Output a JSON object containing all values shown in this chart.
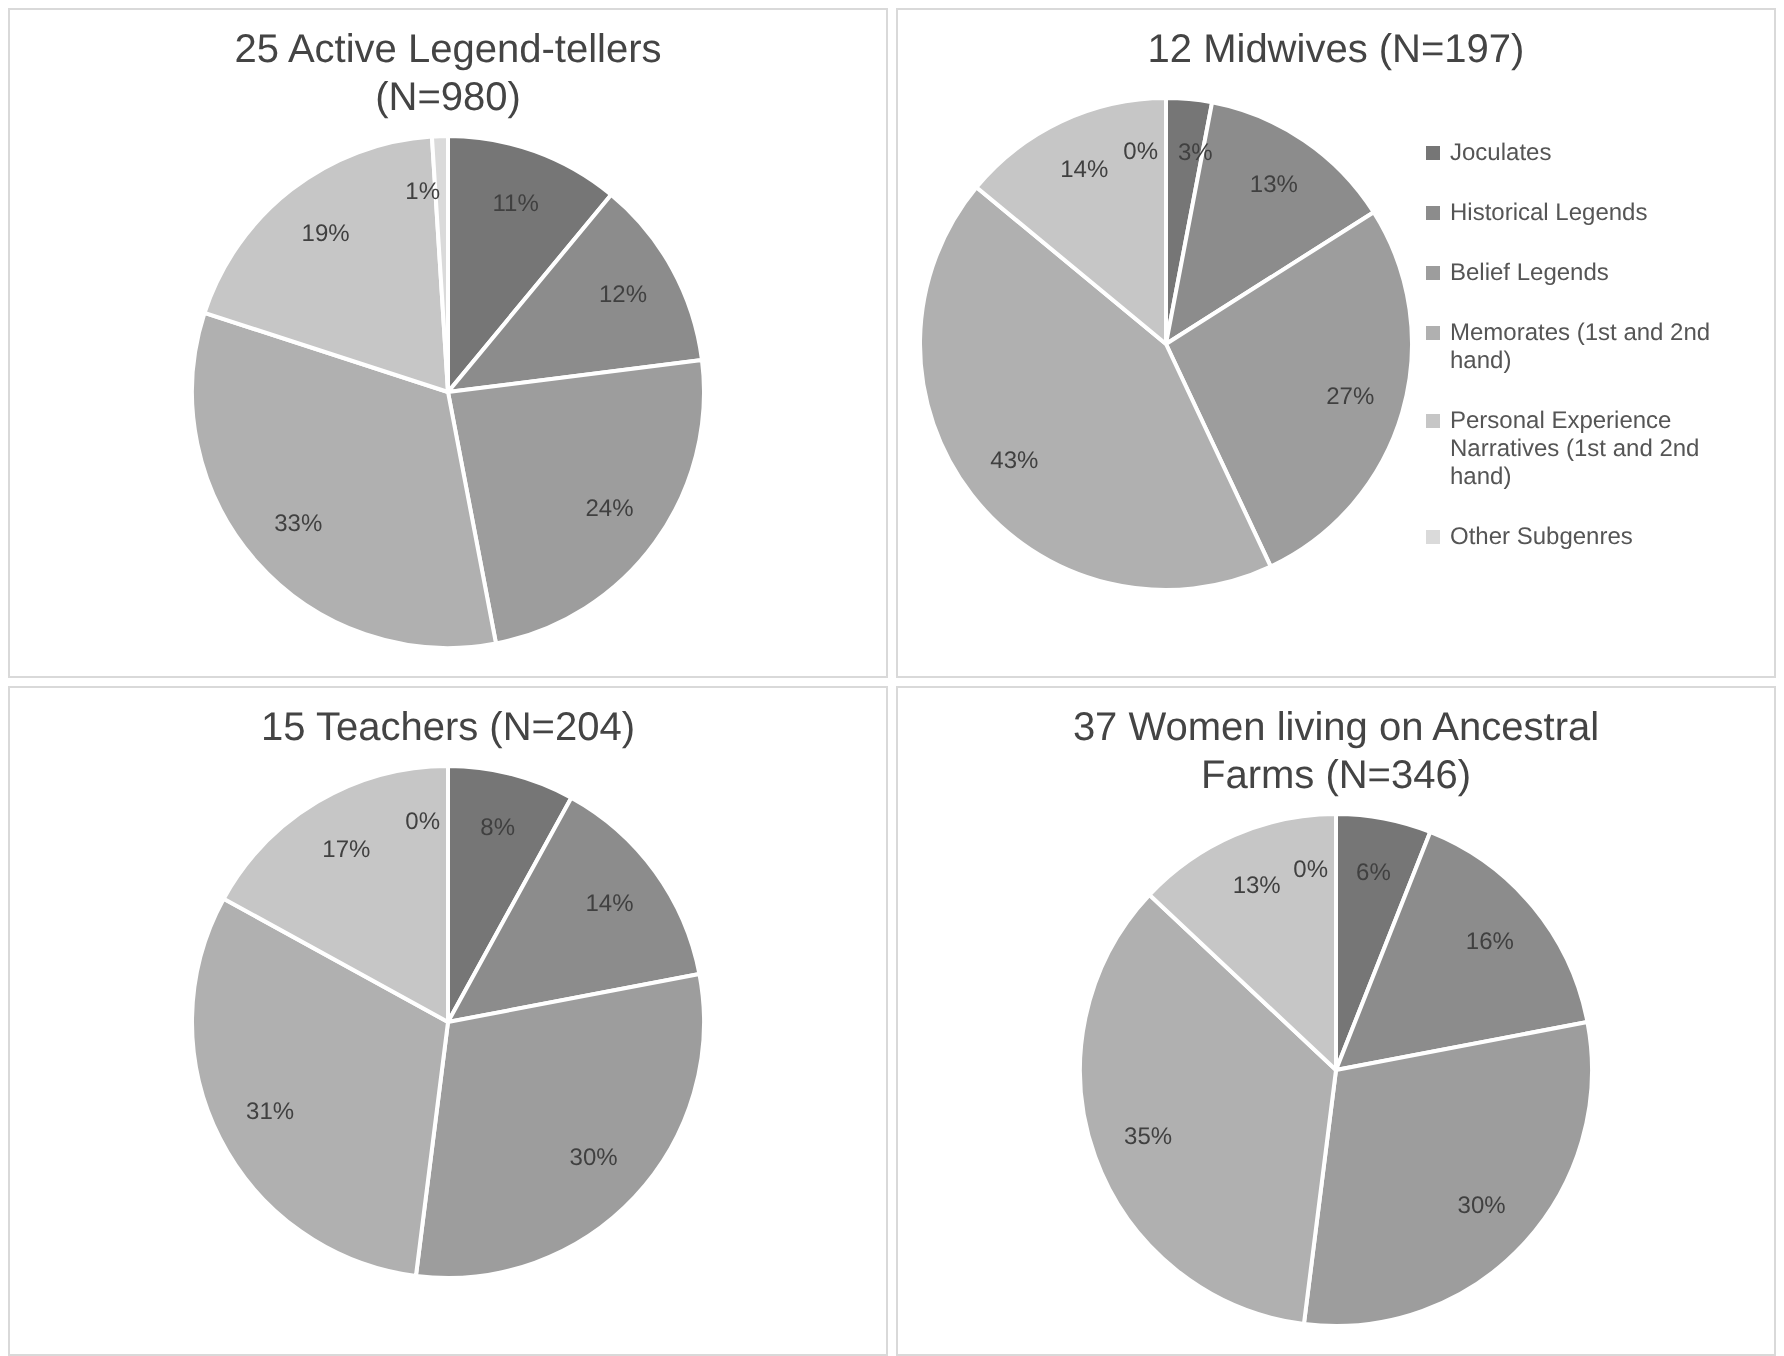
{
  "chart_data": [
    {
      "type": "pie",
      "title": "25 Active Legend-tellers (N=980)",
      "categories": [
        null,
        null,
        null,
        null,
        null,
        null
      ],
      "values": [
        11,
        12,
        24,
        33,
        19,
        1
      ],
      "value_labels": [
        "11%",
        "12%",
        "24%",
        "33%",
        "19%",
        "1%"
      ],
      "colors": [
        "#767676",
        "#8c8c8c",
        "#9d9d9d",
        "#b0b0b0",
        "#c6c6c6",
        "#dadada"
      ],
      "legend": false
    },
    {
      "type": "pie",
      "title": "12 Midwives (N=197)",
      "categories": [
        "Joculates",
        "Historical Legends",
        "Belief Legends",
        "Memorates (1st and 2nd hand)",
        "Personal Experience Narratives (1st and 2nd hand)",
        "Other Subgenres"
      ],
      "values": [
        3,
        13,
        27,
        43,
        14,
        0
      ],
      "value_labels": [
        "3%",
        "13%",
        "27%",
        "43%",
        "14%",
        "0%"
      ],
      "colors": [
        "#767676",
        "#8c8c8c",
        "#9d9d9d",
        "#b0b0b0",
        "#c6c6c6",
        "#dadada"
      ],
      "legend": "right"
    },
    {
      "type": "pie",
      "title": "15 Teachers (N=204)",
      "categories": [
        null,
        null,
        null,
        null,
        null,
        null
      ],
      "values": [
        8,
        14,
        30,
        31,
        17,
        0
      ],
      "value_labels": [
        "8%",
        "14%",
        "30%",
        "31%",
        "17%",
        "0%"
      ],
      "colors": [
        "#767676",
        "#8c8c8c",
        "#9d9d9d",
        "#b0b0b0",
        "#c6c6c6",
        "#dadada"
      ],
      "legend": false
    },
    {
      "type": "pie",
      "title": "37 Women living on Ancestral Farms (N=346)",
      "categories": [
        null,
        null,
        null,
        null,
        null,
        null
      ],
      "values": [
        6,
        16,
        30,
        35,
        13,
        0
      ],
      "value_labels": [
        "6%",
        "16%",
        "30%",
        "35%",
        "13%",
        "0%"
      ],
      "colors": [
        "#767676",
        "#8c8c8c",
        "#9d9d9d",
        "#b0b0b0",
        "#c6c6c6",
        "#dadada"
      ],
      "legend": false
    }
  ]
}
